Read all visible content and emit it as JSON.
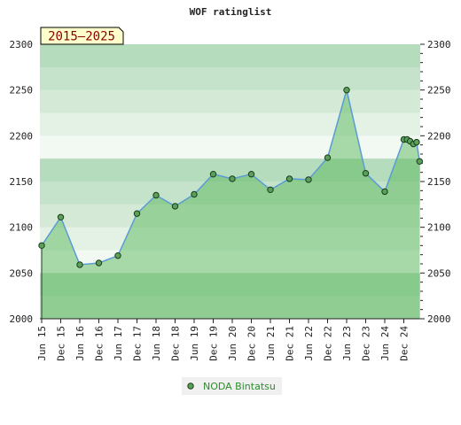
{
  "chart_data": {
    "type": "area",
    "title": "WOF ratinglist",
    "period_label": "2015–2025",
    "ylim": [
      2000,
      2300
    ],
    "y_ticks": [
      "2000",
      "2050",
      "2100",
      "2150",
      "2200",
      "2250",
      "2300"
    ],
    "x_ticks": [
      "Jun 15",
      "Dec 15",
      "Jun 16",
      "Dec 16",
      "Jun 17",
      "Dec 17",
      "Jun 18",
      "Dec 18",
      "Jun 19",
      "Dec 19",
      "Jun 20",
      "Dec 20",
      "Jun 21",
      "Dec 21",
      "Jun 22",
      "Dec 22",
      "Jun 23",
      "Dec 23",
      "Jun 24",
      "Dec 24"
    ],
    "series": [
      {
        "name": "NODA Bintatsu",
        "x": [
          0,
          1,
          2,
          3,
          4,
          5,
          6,
          7,
          8,
          9,
          10,
          11,
          12,
          13,
          14,
          15,
          16,
          17,
          18,
          19,
          19.17,
          19.33,
          19.5,
          19.67,
          19.83
        ],
        "values": [
          2080,
          2111,
          2059,
          2061,
          2069,
          2115,
          2135,
          2123,
          2136,
          2158,
          2153,
          2158,
          2141,
          2153,
          2152,
          2176,
          2250,
          2159,
          2139,
          2196,
          2196,
          2194,
          2191,
          2193,
          2172
        ]
      }
    ],
    "colors": {
      "line": "#5b9bd5",
      "area_fill": "#5cb85c",
      "marker_fill": "#5aa05a",
      "marker_stroke": "#1a3d1a",
      "legend_text": "#2e8b2e",
      "period_bg": "#ffffcc",
      "period_text": "#8b0000"
    }
  }
}
